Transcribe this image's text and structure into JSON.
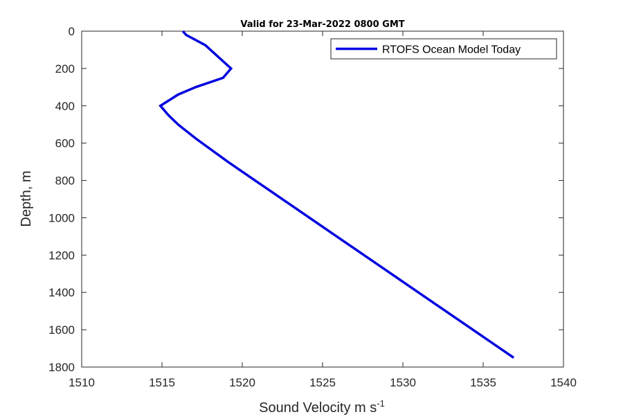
{
  "chart_data": {
    "type": "line",
    "title": "Valid for 23-Mar-2022 0800 GMT",
    "xlabel": "Sound Velocity m s",
    "xlabel_superscript": "-1",
    "ylabel": "Depth, m",
    "xlim": [
      1510,
      1540
    ],
    "ylim": [
      0,
      1800
    ],
    "y_reversed": true,
    "xticks": [
      1510,
      1515,
      1520,
      1525,
      1530,
      1535,
      1540
    ],
    "yticks": [
      0,
      200,
      400,
      600,
      800,
      1000,
      1200,
      1400,
      1600,
      1800
    ],
    "grid": false,
    "legend_position": "top-right",
    "series": [
      {
        "name": "RTOFS Ocean Model Today",
        "color": "#0000e0",
        "x": [
          1516.3,
          1516.5,
          1517.7,
          1519.3,
          1518.8,
          1517.1,
          1516.0,
          1514.9,
          1515.4,
          1516.0,
          1517.1,
          1519.1,
          1536.9
        ],
        "y": [
          0,
          20,
          75,
          200,
          250,
          300,
          340,
          400,
          450,
          500,
          575,
          700,
          1750
        ]
      }
    ]
  }
}
